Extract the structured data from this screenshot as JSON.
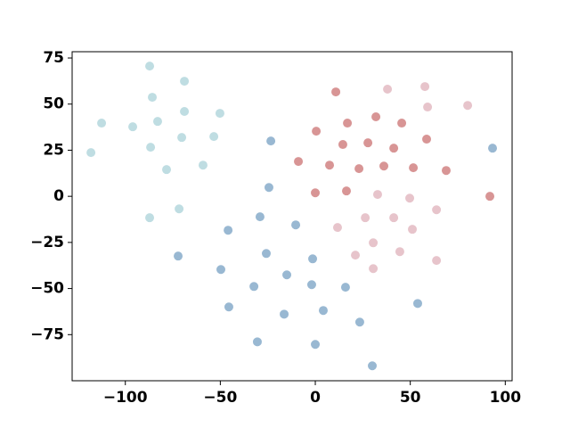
{
  "chart_data": {
    "type": "scatter",
    "xlim": [
      -128,
      103.6
    ],
    "ylim": [
      -100,
      78.4
    ],
    "xticks": [
      {
        "value": -100,
        "label": "−100"
      },
      {
        "value": -50,
        "label": "−50"
      },
      0,
      50,
      100
    ],
    "yticks": [
      {
        "value": -75,
        "label": "−75"
      },
      {
        "value": -50,
        "label": "−50"
      },
      {
        "value": -25,
        "label": "−25"
      },
      0,
      25,
      50,
      75
    ],
    "series": [
      {
        "color": "#cdeef3",
        "x": [
          -87.2,
          -68.9,
          -85.8,
          -68.9,
          -50.2,
          -112.5,
          -83.0,
          -96.1,
          -53.4,
          -70.3,
          -86.7,
          -118.1,
          -59.1,
          -78.3,
          -71.7,
          -87.2
        ],
        "y": [
          70.6,
          62.4,
          53.7,
          46.0,
          45.0,
          39.7,
          40.6,
          37.7,
          32.4,
          31.9,
          26.6,
          23.7,
          16.9,
          14.5,
          -6.8,
          -11.6
        ]
      },
      {
        "color": "#a4c6e2",
        "x": [
          -23.4,
          93.3,
          -24.4,
          -29.1,
          -10.3,
          -45.9,
          -72.2,
          -25.8,
          -1.4,
          -49.7,
          -15.0,
          -1.9,
          -32.3,
          15.9,
          -45.5,
          53.9,
          4.2,
          -16.4,
          23.4,
          -30.5,
          0.0,
          30.0
        ],
        "y": [
          30.0,
          26.1,
          4.8,
          -11.1,
          -15.5,
          -18.4,
          -32.4,
          -31.0,
          -33.9,
          -39.7,
          -42.6,
          -47.9,
          -48.9,
          -49.3,
          -60.0,
          -58.1,
          -61.9,
          -63.9,
          -68.2,
          -78.9,
          -80.3,
          -91.9
        ]
      },
      {
        "color": "#e8a0a0",
        "x": [
          10.8,
          16.9,
          31.9,
          45.5,
          0.5,
          14.5,
          27.7,
          58.6,
          41.3,
          -8.9,
          7.5,
          23.0,
          36.1,
          51.6,
          68.9,
          0.0,
          16.4,
          91.9
        ],
        "y": [
          56.6,
          39.7,
          43.1,
          39.7,
          35.3,
          28.1,
          29.0,
          31.0,
          26.1,
          18.9,
          16.9,
          15.0,
          16.4,
          15.5,
          14.0,
          1.9,
          2.9,
          0.0
        ]
      },
      {
        "color": "#f8d3da",
        "x": [
          38.0,
          57.7,
          59.1,
          80.2,
          32.8,
          49.7,
          63.8,
          26.3,
          41.3,
          11.7,
          51.1,
          30.5,
          44.5,
          21.1,
          63.8,
          30.5
        ],
        "y": [
          58.1,
          59.5,
          48.4,
          49.3,
          1.0,
          -1.0,
          -7.3,
          -11.6,
          -11.6,
          -16.9,
          -17.9,
          -25.2,
          -30.0,
          -31.9,
          -34.8,
          -39.2
        ]
      }
    ]
  }
}
